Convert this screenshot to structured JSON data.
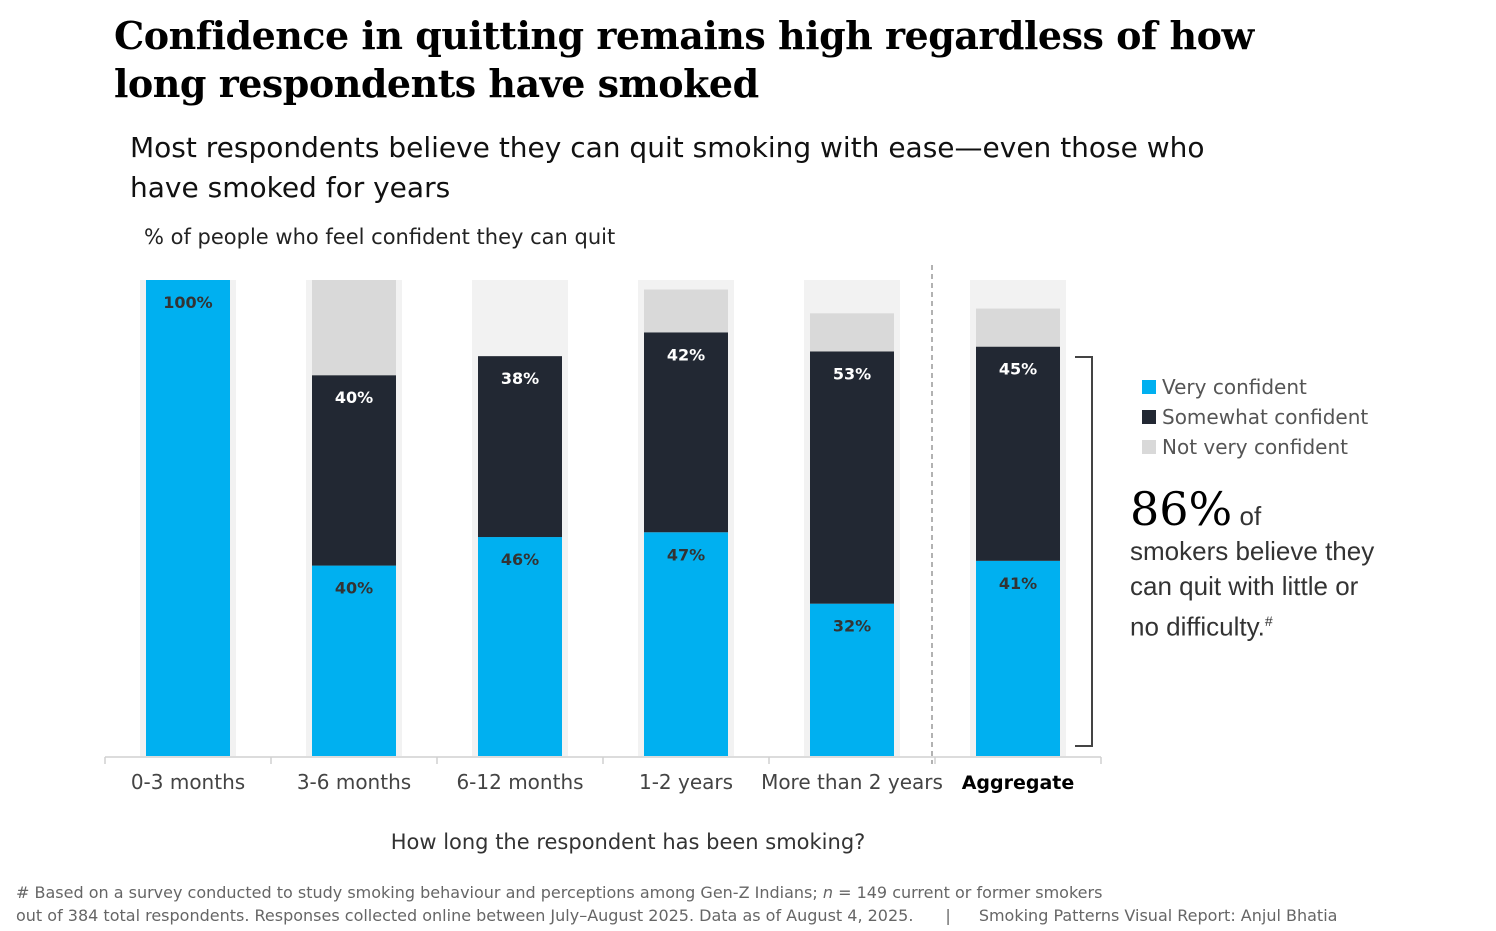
{
  "title": "Confidence in quitting remains high regardless of how long respondents have smoked",
  "subtitle": "Most respondents believe they can quit smoking with ease—even those who have smoked for years",
  "y_axis_label": "% of people who feel confident they can quit",
  "x_axis_label": "How long the respondent has been smoking?",
  "legend": [
    {
      "label": "Very confident",
      "color": "#00B0F0"
    },
    {
      "label": "Somewhat confident",
      "color": "#222833"
    },
    {
      "label": "Not very confident",
      "color": "#D9D9D9"
    }
  ],
  "callout": {
    "big": "86%",
    "of": "of",
    "text": "smokers believe they can quit with little or no difficulty.",
    "mark": "#"
  },
  "footnote": {
    "line1_a": "# Based on a survey conducted to study smoking behaviour and perceptions among Gen-Z Indians; ",
    "n": "n",
    "line1_b": " = 149 current or former smokers",
    "line2": "out of 384 total respondents. Responses collected online between July–August 2025. Data as of August 4, 2025.",
    "separator": "|",
    "credit": "Smoking Patterns Visual Report: Anjul Bhatia"
  },
  "chart_data": {
    "type": "bar",
    "stacked": true,
    "categories": [
      "0-3 months",
      "3-6 months",
      "6-12 months",
      "1-2 years",
      "More than 2 years",
      "Aggregate"
    ],
    "emphasized_category": "Aggregate",
    "ylim": [
      0,
      100
    ],
    "series": [
      {
        "name": "Very confident",
        "color": "#00B0F0",
        "values": [
          100,
          40,
          46,
          47,
          32,
          41
        ],
        "labels": [
          "100%",
          "40%",
          "46%",
          "47%",
          "32%",
          "41%"
        ]
      },
      {
        "name": "Somewhat confident",
        "color": "#222833",
        "values": [
          0,
          40,
          38,
          42,
          53,
          45
        ],
        "labels": [
          "",
          "40%",
          "38%",
          "42%",
          "53%",
          "45%"
        ]
      },
      {
        "name": "Not very confident",
        "color": "#D9D9D9",
        "values": [
          0,
          20,
          0,
          9,
          8,
          8
        ],
        "labels": [
          "",
          "",
          "",
          "",
          "",
          ""
        ]
      }
    ]
  }
}
